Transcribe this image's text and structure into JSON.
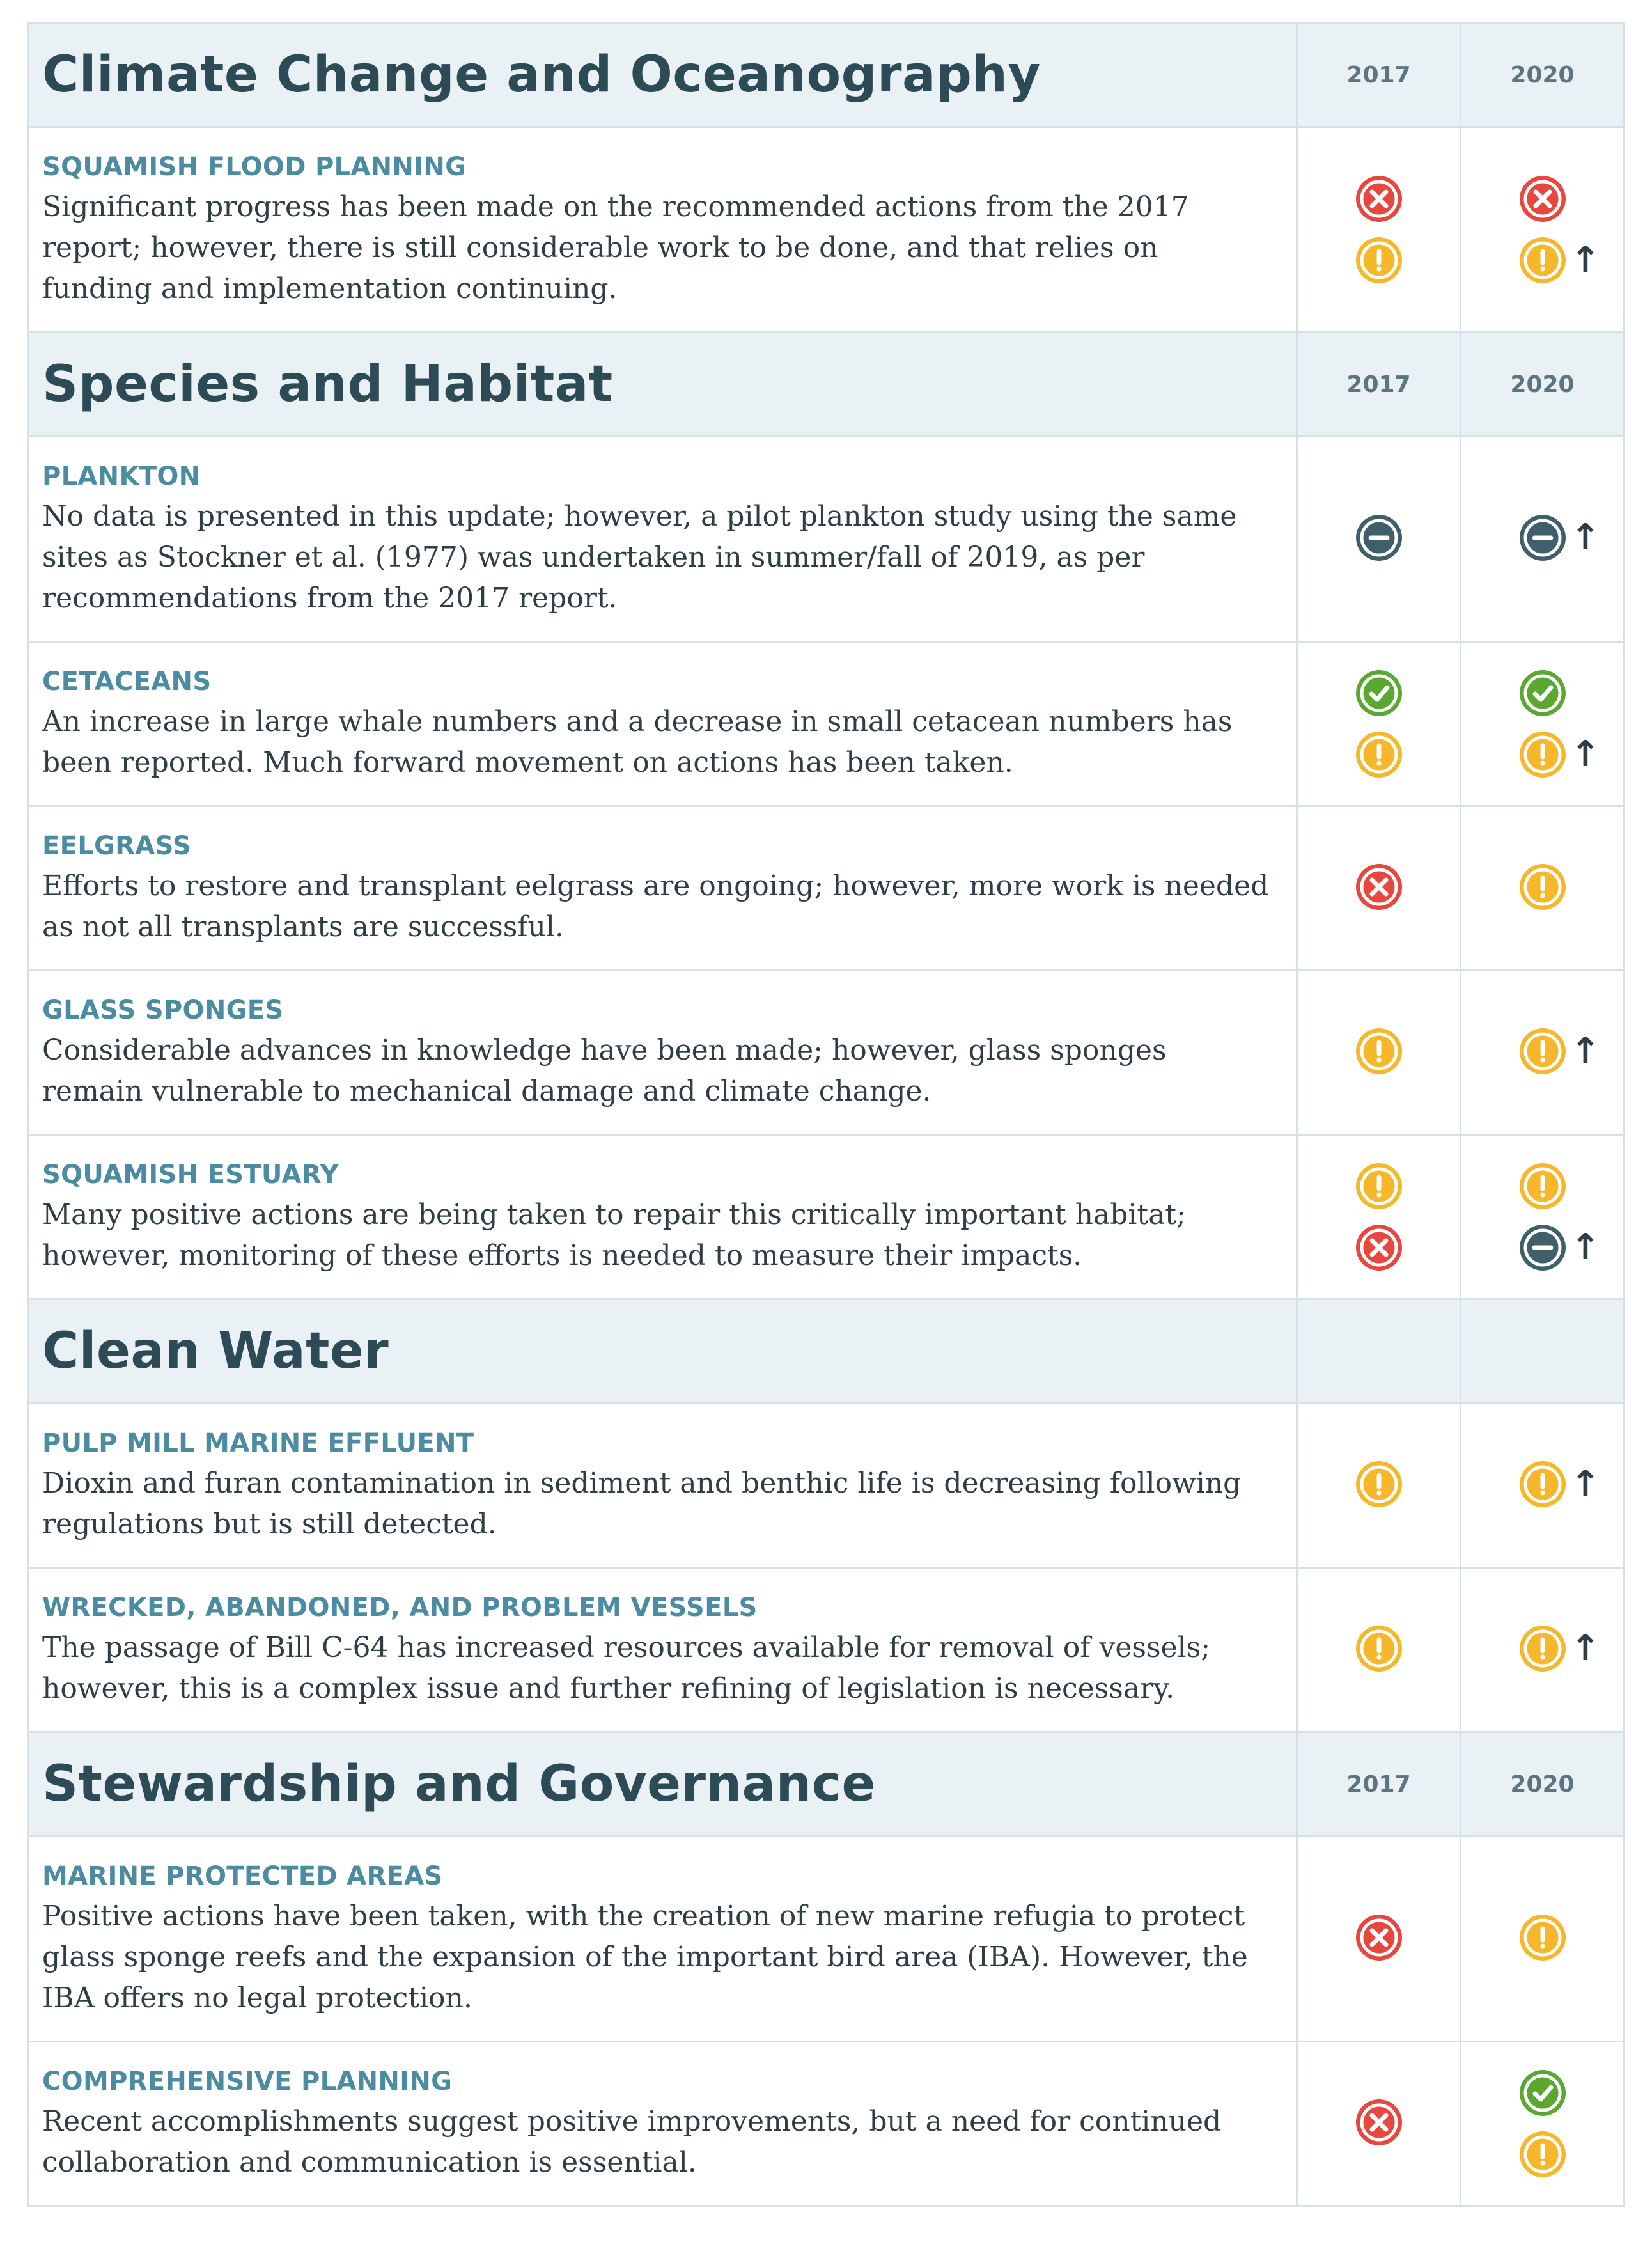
{
  "colors": {
    "border": "#d6e1e7",
    "section_background": "#eaf1f4",
    "section_title": "#2d4b57",
    "item_title": "#4c8ca3",
    "body_text": "#2f3e45",
    "status_red": "#e8473f",
    "status_yellow": "#f6b72a",
    "status_green": "#5aa832",
    "status_dark": "#3f5f6b",
    "improving_arrow": "#2f3e45"
  },
  "legend_icons": {
    "red": "circled-x-icon",
    "yellow": "circled-exclamation-icon",
    "green": "circled-check-icon",
    "dark": "circled-minus-icon",
    "improving": "up-arrow-icon"
  },
  "sections": [
    {
      "title": "Climate Change and Oceanography",
      "years": [
        "2017",
        "2020"
      ],
      "items": [
        {
          "title": "SQUAMISH FLOOD PLANNING",
          "text": "Significant progress has been made on the recommended actions from the 2017 report; however, there is still considerable work to be done, and that relies on funding and implementation continuing.",
          "status_2017": [
            {
              "type": "red",
              "trend": ""
            },
            {
              "type": "yellow",
              "trend": ""
            }
          ],
          "status_2020": [
            {
              "type": "red",
              "trend": ""
            },
            {
              "type": "yellow",
              "trend": "up"
            }
          ]
        }
      ]
    },
    {
      "title": "Species and Habitat",
      "years": [
        "2017",
        "2020"
      ],
      "items": [
        {
          "title": "PLANKTON",
          "text": "No data is presented in this update; however, a pilot plankton study using the same sites as Stockner et al. (1977) was undertaken in summer/fall of 2019, as per recommendations from the 2017 report.",
          "status_2017": [
            {
              "type": "dark",
              "trend": ""
            }
          ],
          "status_2020": [
            {
              "type": "dark",
              "trend": "up"
            }
          ]
        },
        {
          "title": "CETACEANS",
          "text": "An increase in large whale numbers and a decrease in small cetacean numbers has been reported. Much forward movement on actions has been taken.",
          "status_2017": [
            {
              "type": "green",
              "trend": ""
            },
            {
              "type": "yellow",
              "trend": ""
            }
          ],
          "status_2020": [
            {
              "type": "green",
              "trend": ""
            },
            {
              "type": "yellow",
              "trend": "up"
            }
          ]
        },
        {
          "title": "EELGRASS",
          "text": "Efforts to restore and transplant eelgrass are ongoing; however, more work is needed as not all transplants are successful.",
          "status_2017": [
            {
              "type": "red",
              "trend": ""
            }
          ],
          "status_2020": [
            {
              "type": "yellow",
              "trend": ""
            }
          ]
        },
        {
          "title": "GLASS SPONGES",
          "text": "Considerable advances in knowledge have been made; however, glass sponges remain vulnerable to mechanical damage and climate change.",
          "status_2017": [
            {
              "type": "yellow",
              "trend": ""
            }
          ],
          "status_2020": [
            {
              "type": "yellow",
              "trend": "up"
            }
          ]
        },
        {
          "title": "SQUAMISH ESTUARY",
          "text": "Many positive actions are being taken to repair this critically important habitat; however, monitoring of these efforts is needed to measure their impacts.",
          "status_2017": [
            {
              "type": "yellow",
              "trend": ""
            },
            {
              "type": "red",
              "trend": ""
            }
          ],
          "status_2020": [
            {
              "type": "yellow",
              "trend": ""
            },
            {
              "type": "dark",
              "trend": "up"
            }
          ]
        }
      ]
    },
    {
      "title": "Clean Water",
      "years": [
        "",
        ""
      ],
      "items": [
        {
          "title": "PULP MILL MARINE EFFLUENT",
          "text": "Dioxin and furan contamination in sediment and benthic life is decreasing following regulations but is still detected.",
          "status_2017": [
            {
              "type": "yellow",
              "trend": ""
            }
          ],
          "status_2020": [
            {
              "type": "yellow",
              "trend": "up"
            }
          ]
        },
        {
          "title": "WRECKED, ABANDONED, AND PROBLEM VESSELS",
          "text": "The passage of Bill C-64 has increased resources available for removal of vessels; however, this is a complex issue and further refining of legislation is necessary.",
          "status_2017": [
            {
              "type": "yellow",
              "trend": ""
            }
          ],
          "status_2020": [
            {
              "type": "yellow",
              "trend": "up"
            }
          ]
        }
      ]
    },
    {
      "title": "Stewardship and Governance",
      "years": [
        "2017",
        "2020"
      ],
      "items": [
        {
          "title": "MARINE PROTECTED AREAS",
          "text": "Positive actions have been taken, with the creation of new marine refugia to protect glass sponge reefs and the expansion of the important bird area (IBA). However, the IBA offers no legal protection.",
          "status_2017": [
            {
              "type": "red",
              "trend": ""
            }
          ],
          "status_2020": [
            {
              "type": "yellow",
              "trend": ""
            }
          ]
        },
        {
          "title": "COMPREHENSIVE PLANNING",
          "text": "Recent accomplishments suggest positive improvements, but a need for continued collaboration and communication is essential.",
          "status_2017": [
            {
              "type": "red",
              "trend": ""
            }
          ],
          "status_2020": [
            {
              "type": "green",
              "trend": ""
            },
            {
              "type": "yellow",
              "trend": ""
            }
          ]
        }
      ]
    }
  ]
}
